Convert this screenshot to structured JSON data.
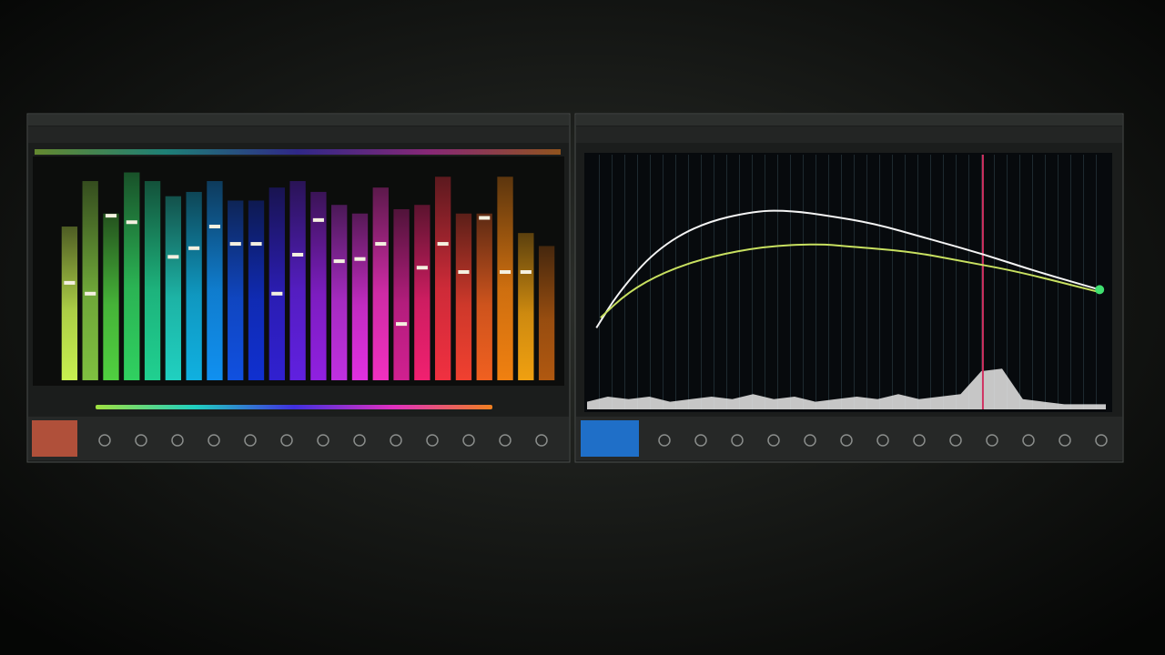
{
  "chart_data": [
    {
      "type": "bar",
      "ylim": [
        0,
        100
      ],
      "values": [
        71,
        92,
        77,
        96,
        92,
        85,
        87,
        92,
        83,
        83,
        89,
        92,
        87,
        81,
        77,
        89,
        79,
        81,
        94,
        77,
        77,
        94,
        68,
        62
      ],
      "peaks": [
        45,
        40,
        76,
        73,
        null,
        57,
        61,
        71,
        63,
        63,
        40,
        58,
        74,
        55,
        56,
        63,
        26,
        52,
        63,
        50,
        75,
        50,
        50,
        null
      ],
      "colors": [
        "#c8f050",
        "#7fc040",
        "#50d040",
        "#30d060",
        "#20d090",
        "#20d0c0",
        "#10b0e0",
        "#1090f0",
        "#1050e0",
        "#1030d0",
        "#3020d0",
        "#6020e0",
        "#9020e0",
        "#c030e0",
        "#e030e0",
        "#f030c0",
        "#d02090",
        "#f02070",
        "#f03040",
        "#f04030",
        "#f06020",
        "#f08010",
        "#f0a010",
        "#b05810"
      ]
    },
    {
      "type": "line",
      "xlim": [
        0,
        100
      ],
      "ylim": [
        0,
        100
      ],
      "series": [
        {
          "color": "#f4f4f4",
          "x": [
            1.8,
            6.1,
            13.2,
            21.9,
            32.5,
            39.5,
            46.5,
            55.3,
            65.8,
            76.3,
            86.8,
            98.8
          ],
          "values": [
            32,
            46,
            62.5,
            73,
            78,
            78,
            76,
            73,
            67,
            61,
            54,
            47
          ]
        },
        {
          "color": "#c8e060",
          "x": [
            2.6,
            7.9,
            14.9,
            23.7,
            34.2,
            44.7,
            50,
            62.3,
            72.8,
            83.3,
            98.8
          ],
          "values": [
            36,
            46,
            54,
            60,
            64,
            65,
            64,
            62,
            58,
            54,
            46
          ]
        }
      ],
      "spectrum": {
        "color": "#e8e8e8",
        "x": [
          0,
          4,
          8,
          12,
          16,
          20,
          24,
          28,
          32,
          36,
          40,
          44,
          48,
          52,
          56,
          60,
          64,
          68,
          72,
          76,
          80,
          84,
          88,
          92,
          96,
          100
        ],
        "values": [
          3,
          5,
          4,
          5,
          3,
          4,
          5,
          4,
          6,
          4,
          5,
          3,
          4,
          5,
          4,
          6,
          4,
          5,
          6,
          15,
          16,
          4,
          3,
          2,
          2,
          2
        ]
      },
      "cursor": {
        "color": "#d03060",
        "x": 76.3
      }
    }
  ]
}
